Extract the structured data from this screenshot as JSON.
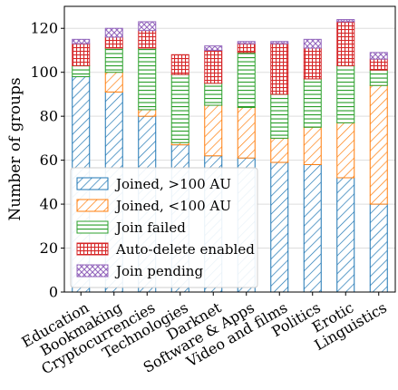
{
  "chart_data": {
    "type": "bar",
    "stacked": true,
    "title": "",
    "xlabel": "",
    "ylabel": "Number of groups",
    "ylim": [
      0,
      130
    ],
    "yticks": [
      0,
      20,
      40,
      60,
      80,
      100,
      120
    ],
    "grid": "horizontal",
    "legend_position": "lower-left",
    "categories": [
      "Education",
      "Bookmaking",
      "Cryptocurrencies",
      "Technologies",
      "Darknet",
      "Software & Apps",
      "Video and films",
      "Politics",
      "Erotic",
      "Linguistics"
    ],
    "series": [
      {
        "name": "Joined, >100 AU",
        "color": "#1f77b4",
        "hatch": "diagonal",
        "values": [
          98,
          91,
          80,
          67,
          62,
          61,
          59,
          58,
          52,
          40
        ]
      },
      {
        "name": "Joined, <100 AU",
        "color": "#ff7f0e",
        "hatch": "diagonal",
        "values": [
          0,
          9,
          3,
          1,
          23,
          23,
          11,
          17,
          25,
          54
        ]
      },
      {
        "name": "Join failed",
        "color": "#2ca02c",
        "hatch": "horizontal",
        "values": [
          5,
          11,
          28,
          31,
          10,
          25,
          20,
          22,
          26,
          7
        ]
      },
      {
        "name": "Auto-delete enabled",
        "color": "#d62728",
        "hatch": "grid",
        "values": [
          10,
          5,
          8,
          9,
          15,
          4,
          23,
          14,
          20,
          5
        ]
      },
      {
        "name": "Join pending",
        "color": "#9467bd",
        "hatch": "cross",
        "values": [
          2,
          4,
          4,
          0,
          2,
          1,
          1,
          4,
          1,
          3
        ]
      }
    ]
  }
}
